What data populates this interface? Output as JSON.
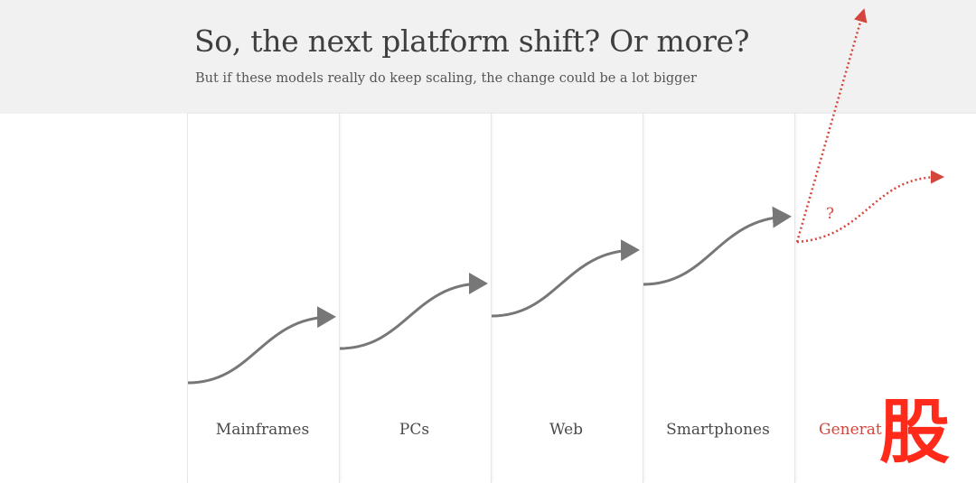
{
  "header": {
    "title": "So, the next platform shift? Or more?",
    "subtitle": "But if these models really do keep scaling, the change could be a lot bigger"
  },
  "eras": [
    {
      "label": "Mainframes"
    },
    {
      "label": "PCs"
    },
    {
      "label": "Web"
    },
    {
      "label": "Smartphones"
    },
    {
      "label": "Generat"
    }
  ],
  "future_marker": "?",
  "watermark_glyph": "股",
  "colors": {
    "curve": "#777777",
    "future": "#d6453b",
    "header_bg": "#f1f1f1",
    "watermark": "#ff2a1a"
  }
}
